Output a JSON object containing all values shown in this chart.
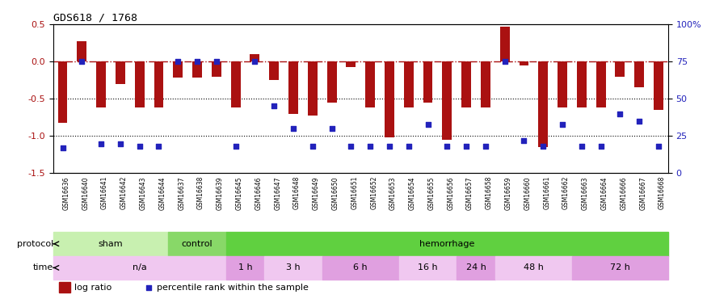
{
  "title": "GDS618 / 1768",
  "samples": [
    "GSM16636",
    "GSM16640",
    "GSM16641",
    "GSM16642",
    "GSM16643",
    "GSM16644",
    "GSM16637",
    "GSM16638",
    "GSM16639",
    "GSM16645",
    "GSM16646",
    "GSM16647",
    "GSM16648",
    "GSM16649",
    "GSM16650",
    "GSM16651",
    "GSM16652",
    "GSM16653",
    "GSM16654",
    "GSM16655",
    "GSM16656",
    "GSM16657",
    "GSM16658",
    "GSM16659",
    "GSM16660",
    "GSM16661",
    "GSM16662",
    "GSM16663",
    "GSM16664",
    "GSM16666",
    "GSM16667",
    "GSM16668"
  ],
  "log_ratio": [
    -0.82,
    0.27,
    -0.62,
    -0.3,
    -0.62,
    -0.62,
    -0.22,
    -0.22,
    -0.2,
    -0.62,
    0.1,
    -0.25,
    -0.7,
    -0.72,
    -0.55,
    -0.08,
    -0.62,
    -1.02,
    -0.62,
    -0.55,
    -1.05,
    -0.62,
    -0.62,
    0.47,
    -0.05,
    -1.15,
    -0.62,
    -0.62,
    -0.62,
    -0.2,
    -0.35,
    -0.65
  ],
  "percentile": [
    17,
    75,
    20,
    20,
    18,
    18,
    75,
    75,
    75,
    18,
    75,
    45,
    30,
    18,
    30,
    18,
    18,
    18,
    18,
    33,
    18,
    18,
    18,
    75,
    22,
    18,
    33,
    18,
    18,
    40,
    35,
    18
  ],
  "protocol_groups": [
    {
      "label": "sham",
      "start": 0,
      "end": 6,
      "color": "#c8f0b0"
    },
    {
      "label": "control",
      "start": 6,
      "end": 9,
      "color": "#88d868"
    },
    {
      "label": "hemorrhage",
      "start": 9,
      "end": 32,
      "color": "#60d040"
    }
  ],
  "time_groups": [
    {
      "label": "n/a",
      "start": 0,
      "end": 9,
      "color": "#f0c8f0"
    },
    {
      "label": "1 h",
      "start": 9,
      "end": 11,
      "color": "#e0a0e0"
    },
    {
      "label": "3 h",
      "start": 11,
      "end": 14,
      "color": "#f0c8f0"
    },
    {
      "label": "6 h",
      "start": 14,
      "end": 18,
      "color": "#e0a0e0"
    },
    {
      "label": "16 h",
      "start": 18,
      "end": 21,
      "color": "#f0c8f0"
    },
    {
      "label": "24 h",
      "start": 21,
      "end": 23,
      "color": "#e0a0e0"
    },
    {
      "label": "48 h",
      "start": 23,
      "end": 27,
      "color": "#f0c8f0"
    },
    {
      "label": "72 h",
      "start": 27,
      "end": 32,
      "color": "#e0a0e0"
    }
  ],
  "bar_color": "#aa1111",
  "dot_color": "#2222bb",
  "ylim_left": [
    -1.5,
    0.5
  ],
  "ylim_right": [
    0,
    100
  ],
  "yticks_left": [
    -1.5,
    -1.0,
    -0.5,
    0.0,
    0.5
  ],
  "yticks_right": [
    0,
    25,
    50,
    75,
    100
  ],
  "ytick_right_labels": [
    "0",
    "25",
    "50",
    "75",
    "100%"
  ],
  "n_samples": 32
}
